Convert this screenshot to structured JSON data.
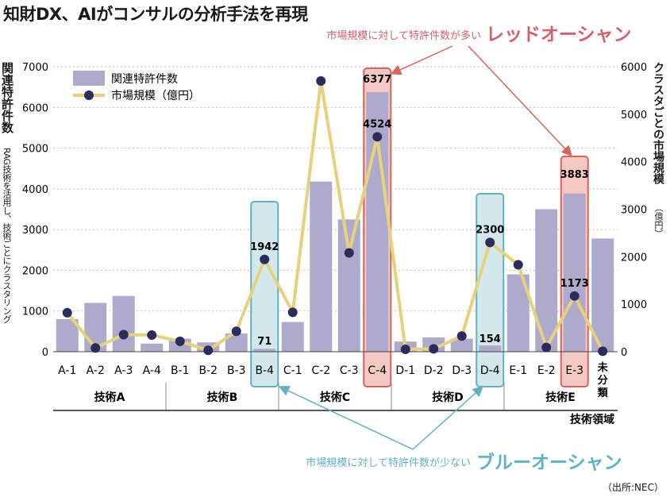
{
  "title": "知財DX、AIがコンサルの分析手法を再現",
  "source": "（出所:NEC）",
  "labels": {
    "left_axis_main": "関連特許件数",
    "left_axis_sub": "RAG技術を活用し、技術ごとにクラスタリング",
    "right_axis_main": "クラスタごとの市場規模",
    "right_axis_unit": "（億円）",
    "x_axis": "技術領域"
  },
  "annotations": {
    "red_prefix": "市場規模に対して特許件数が多い",
    "red_emph": "レッドオーシャン",
    "blue_prefix": "市場規模に対して特許件数が少ない",
    "blue_emph": "ブルーオーシャン"
  },
  "colors": {
    "bar": "#aeaacb",
    "line": "#e6d27c",
    "marker": "#2a2c5e",
    "red_box_fill": "#f4c9c3",
    "red_box_stroke": "#d9645c",
    "red_text": "#d5606a",
    "blue_box_fill": "#d3e8ec",
    "blue_box_stroke": "#62b0c3",
    "blue_text": "#5fb2c7"
  },
  "chart_data": {
    "type": "bar",
    "categories": [
      "A-1",
      "A-2",
      "A-3",
      "A-4",
      "B-1",
      "B-2",
      "B-3",
      "B-4",
      "C-1",
      "C-2",
      "C-3",
      "C-4",
      "D-1",
      "D-2",
      "D-3",
      "D-4",
      "E-1",
      "E-2",
      "E-3",
      "未分類"
    ],
    "groups": [
      {
        "name": "技術A",
        "members": [
          "A-1",
          "A-2",
          "A-3",
          "A-4"
        ]
      },
      {
        "name": "技術B",
        "members": [
          "B-1",
          "B-2",
          "B-3",
          "B-4"
        ]
      },
      {
        "name": "技術C",
        "members": [
          "C-1",
          "C-2",
          "C-3",
          "C-4"
        ]
      },
      {
        "name": "技術D",
        "members": [
          "D-1",
          "D-2",
          "D-3",
          "D-4"
        ]
      },
      {
        "name": "技術E",
        "members": [
          "E-1",
          "E-2",
          "E-3",
          "未分類"
        ]
      }
    ],
    "series": [
      {
        "name": "関連特許件数",
        "type": "bar",
        "axis": "left",
        "values": [
          800,
          1200,
          1370,
          200,
          320,
          230,
          450,
          71,
          730,
          4180,
          3250,
          6377,
          250,
          350,
          320,
          154,
          1900,
          3500,
          3883,
          2780
        ]
      },
      {
        "name": "市場規模（億円）",
        "type": "line",
        "axis": "right",
        "values": [
          820,
          80,
          360,
          350,
          220,
          30,
          430,
          1942,
          830,
          5700,
          2080,
          4524,
          50,
          60,
          330,
          2300,
          1830,
          90,
          1173,
          10
        ]
      }
    ],
    "data_labels": [
      {
        "category": "B-4",
        "series": "関連特許件数",
        "text": "71"
      },
      {
        "category": "B-4",
        "series": "市場規模（億円）",
        "text": "1942"
      },
      {
        "category": "C-4",
        "series": "関連特許件数",
        "text": "6377"
      },
      {
        "category": "C-4",
        "series": "市場規模（億円）",
        "text": "4524"
      },
      {
        "category": "D-4",
        "series": "関連特許件数",
        "text": "154"
      },
      {
        "category": "D-4",
        "series": "市場規模（億円）",
        "text": "2300"
      },
      {
        "category": "E-3",
        "series": "関連特許件数",
        "text": "3883"
      },
      {
        "category": "E-3",
        "series": "市場規模（億円）",
        "text": "1173"
      }
    ],
    "highlights": [
      {
        "category": "C-4",
        "kind": "red"
      },
      {
        "category": "E-3",
        "kind": "red"
      },
      {
        "category": "B-4",
        "kind": "blue"
      },
      {
        "category": "D-4",
        "kind": "blue"
      }
    ],
    "y_left": {
      "min": 0,
      "max": 7000,
      "ticks": [
        "0",
        "1000",
        "2000",
        "3000",
        "4000",
        "5000",
        "6000",
        "7000"
      ]
    },
    "y_right": {
      "min": 0,
      "max": 6000,
      "ticks": [
        "0",
        "1000",
        "2000",
        "3000",
        "4000",
        "5000",
        "6000"
      ]
    },
    "legend": {
      "placement": "top-left",
      "entries": [
        "関連特許件数",
        "市場規模（億円）"
      ]
    },
    "grid": "horizontal-dashed"
  }
}
